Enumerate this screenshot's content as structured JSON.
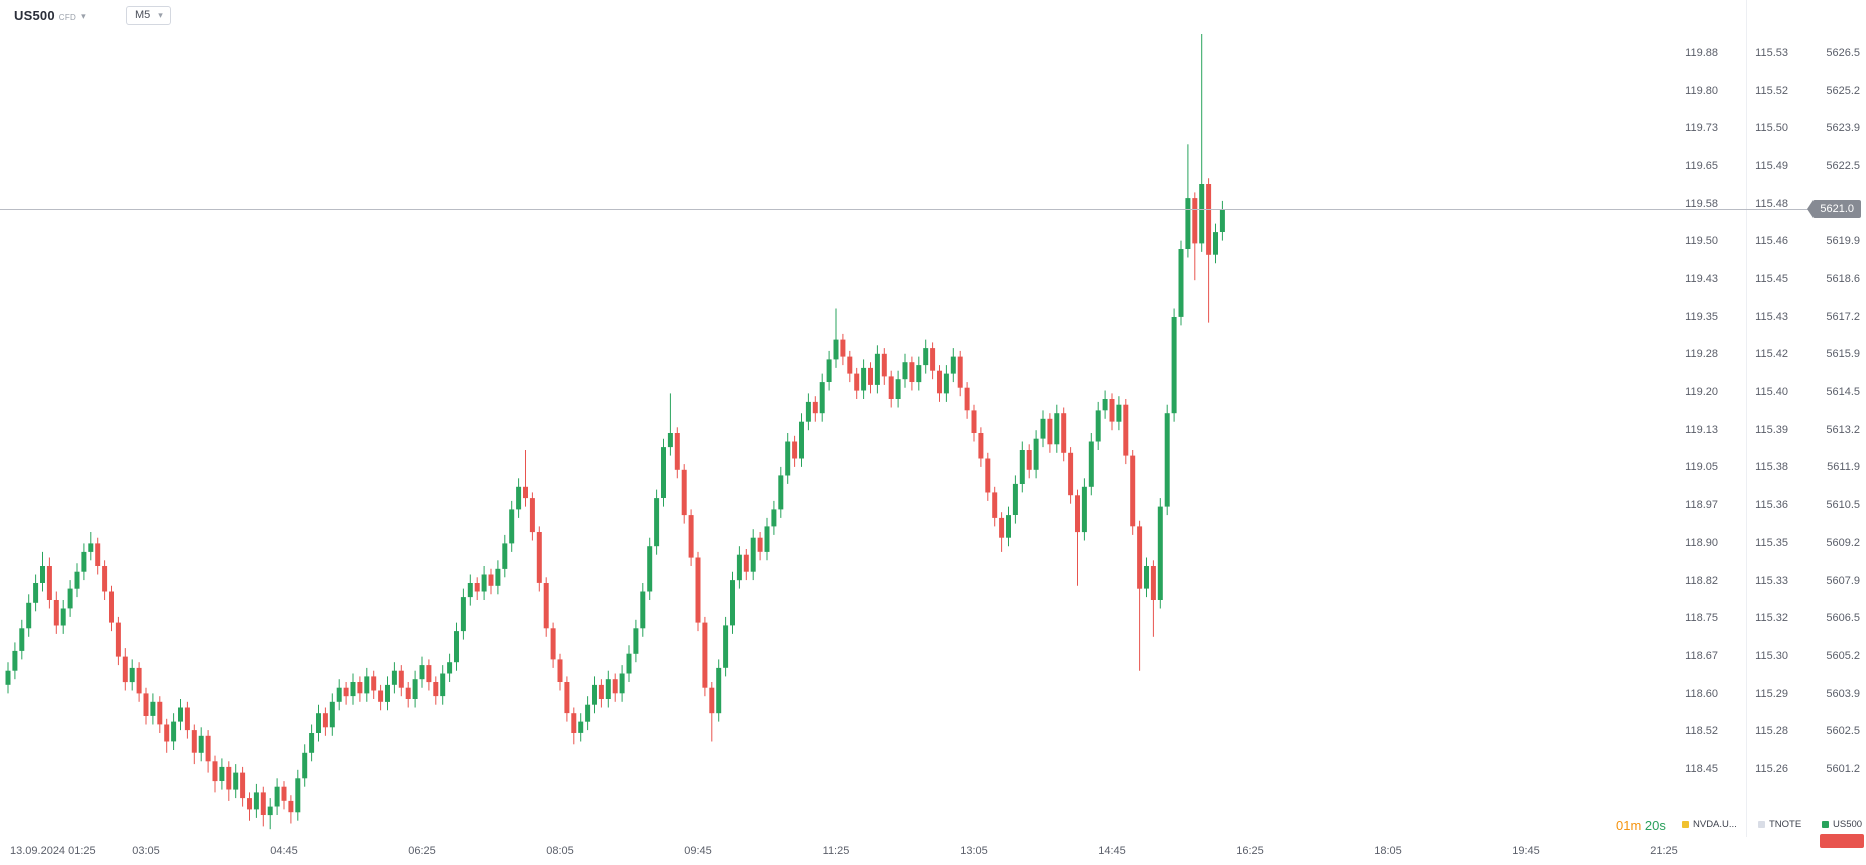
{
  "header": {
    "symbol": "US500",
    "instrument_type": "CFD",
    "timeframe": "M5"
  },
  "price_scales": {
    "columns": [
      {
        "name": "NVDA.US",
        "values": [
          "119.88",
          "119.80",
          "119.73",
          "119.65",
          "119.58",
          "119.50",
          "119.43",
          "119.35",
          "119.28",
          "119.20",
          "119.13",
          "119.05",
          "118.97",
          "118.90",
          "118.82",
          "118.75",
          "118.67",
          "118.60",
          "118.52",
          "118.45"
        ]
      },
      {
        "name": "TNOTE",
        "values": [
          "115.53",
          "115.52",
          "115.50",
          "115.49",
          "115.48",
          "115.46",
          "115.45",
          "115.43",
          "115.42",
          "115.40",
          "115.39",
          "115.38",
          "115.36",
          "115.35",
          "115.33",
          "115.32",
          "115.30",
          "115.29",
          "115.28",
          "115.26"
        ]
      },
      {
        "name": "US500",
        "values": [
          "5626.5",
          "5625.2",
          "5623.9",
          "5622.5",
          "",
          "5619.9",
          "5618.6",
          "5617.2",
          "5615.9",
          "5614.5",
          "5613.2",
          "5611.9",
          "5610.5",
          "5609.2",
          "5607.9",
          "5606.5",
          "5605.2",
          "5603.9",
          "5602.5",
          "5601.2"
        ]
      }
    ]
  },
  "current_price": {
    "value": "5621.0"
  },
  "time_axis": {
    "labels": [
      "13.09.2024 01:25",
      "03:05",
      "04:45",
      "06:25",
      "08:05",
      "09:45",
      "11:25",
      "13:05",
      "14:45",
      "16:25",
      "18:05",
      "19:45",
      "21:25"
    ]
  },
  "footer": {
    "countdown": {
      "minutes": "01m",
      "seconds": "20s"
    },
    "legend": [
      {
        "label": "NVDA.U...",
        "color": "#f0c12f"
      },
      {
        "label": "TNOTE",
        "color": "#d9dde6"
      },
      {
        "label": "US500",
        "color": "#28a35c"
      }
    ]
  },
  "chart_data": {
    "type": "candlestick",
    "symbol": "US500",
    "instrument_type": "CFD",
    "timeframe": "M5",
    "date": "13.09.2024",
    "start_time": "01:25",
    "interval_minutes": 5,
    "price_axis": {
      "visible_min": 5601.2,
      "visible_max": 5626.5,
      "tick_step": 1.3
    },
    "current_price": 5621.0,
    "colors": {
      "up": "#28a35c",
      "down": "#e8544e",
      "price_line": "#b9bcc4"
    },
    "ohlc": [
      [
        5604.2,
        5605.0,
        5603.9,
        5604.7
      ],
      [
        5604.7,
        5605.7,
        5604.4,
        5605.4
      ],
      [
        5605.4,
        5606.5,
        5605.1,
        5606.2
      ],
      [
        5606.2,
        5607.4,
        5605.9,
        5607.1
      ],
      [
        5607.1,
        5608.1,
        5606.8,
        5607.8
      ],
      [
        5607.8,
        5608.9,
        5607.5,
        5608.4
      ],
      [
        5608.4,
        5608.7,
        5606.9,
        5607.2
      ],
      [
        5607.2,
        5607.5,
        5606.0,
        5606.3
      ],
      [
        5606.3,
        5607.2,
        5606.0,
        5606.9
      ],
      [
        5606.9,
        5607.9,
        5606.6,
        5607.6
      ],
      [
        5607.6,
        5608.5,
        5607.3,
        5608.2
      ],
      [
        5608.2,
        5609.2,
        5607.9,
        5608.9
      ],
      [
        5608.9,
        5609.6,
        5608.6,
        5609.2
      ],
      [
        5609.2,
        5609.4,
        5608.1,
        5608.4
      ],
      [
        5608.4,
        5608.6,
        5607.2,
        5607.5
      ],
      [
        5607.5,
        5607.7,
        5606.1,
        5606.4
      ],
      [
        5606.4,
        5606.6,
        5604.9,
        5605.2
      ],
      [
        5605.2,
        5605.5,
        5604.0,
        5604.3
      ],
      [
        5604.3,
        5605.1,
        5604.0,
        5604.8
      ],
      [
        5604.8,
        5605.0,
        5603.6,
        5603.9
      ],
      [
        5603.9,
        5604.1,
        5602.8,
        5603.1
      ],
      [
        5603.1,
        5603.9,
        5602.8,
        5603.6
      ],
      [
        5603.6,
        5603.8,
        5602.5,
        5602.8
      ],
      [
        5602.8,
        5603.0,
        5601.8,
        5602.2
      ],
      [
        5602.2,
        5603.2,
        5601.9,
        5602.9
      ],
      [
        5602.9,
        5603.7,
        5602.6,
        5603.4
      ],
      [
        5603.4,
        5603.6,
        5602.3,
        5602.6
      ],
      [
        5602.6,
        5602.8,
        5601.4,
        5601.8
      ],
      [
        5601.8,
        5602.7,
        5601.5,
        5602.4
      ],
      [
        5602.4,
        5602.6,
        5601.1,
        5601.5
      ],
      [
        5601.5,
        5601.7,
        5600.4,
        5600.8
      ],
      [
        5600.8,
        5601.6,
        5600.5,
        5601.3
      ],
      [
        5601.3,
        5601.5,
        5600.1,
        5600.5
      ],
      [
        5600.5,
        5601.4,
        5600.2,
        5601.1
      ],
      [
        5601.1,
        5601.3,
        5599.9,
        5600.2
      ],
      [
        5600.2,
        5600.4,
        5599.4,
        5599.8
      ],
      [
        5599.8,
        5600.7,
        5599.5,
        5600.4
      ],
      [
        5600.4,
        5600.6,
        5599.2,
        5599.6
      ],
      [
        5599.6,
        5600.2,
        5599.1,
        5599.9
      ],
      [
        5599.9,
        5600.9,
        5599.6,
        5600.6
      ],
      [
        5600.6,
        5600.8,
        5599.8,
        5600.1
      ],
      [
        5600.1,
        5600.3,
        5599.3,
        5599.7
      ],
      [
        5599.7,
        5601.2,
        5599.4,
        5600.9
      ],
      [
        5600.9,
        5602.1,
        5600.6,
        5601.8
      ],
      [
        5601.8,
        5602.8,
        5601.5,
        5602.5
      ],
      [
        5602.5,
        5603.5,
        5602.2,
        5603.2
      ],
      [
        5603.2,
        5603.4,
        5602.4,
        5602.7
      ],
      [
        5602.7,
        5603.9,
        5602.4,
        5603.6
      ],
      [
        5603.6,
        5604.4,
        5603.3,
        5604.1
      ],
      [
        5604.1,
        5604.3,
        5603.5,
        5603.8
      ],
      [
        5603.8,
        5604.6,
        5603.5,
        5604.3
      ],
      [
        5604.3,
        5604.5,
        5603.6,
        5603.9
      ],
      [
        5603.9,
        5604.8,
        5603.6,
        5604.5
      ],
      [
        5604.5,
        5604.7,
        5603.7,
        5604.0
      ],
      [
        5604.0,
        5604.2,
        5603.3,
        5603.6
      ],
      [
        5603.6,
        5604.5,
        5603.3,
        5604.2
      ],
      [
        5604.2,
        5605.0,
        5603.9,
        5604.7
      ],
      [
        5604.7,
        5604.9,
        5603.8,
        5604.1
      ],
      [
        5604.1,
        5604.3,
        5603.4,
        5603.7
      ],
      [
        5603.7,
        5604.7,
        5603.4,
        5604.4
      ],
      [
        5604.4,
        5605.2,
        5604.1,
        5604.9
      ],
      [
        5604.9,
        5605.1,
        5604.0,
        5604.3
      ],
      [
        5604.3,
        5604.5,
        5603.5,
        5603.8
      ],
      [
        5603.8,
        5604.9,
        5603.5,
        5604.6
      ],
      [
        5604.6,
        5605.3,
        5604.3,
        5605.0
      ],
      [
        5605.0,
        5606.4,
        5604.7,
        5606.1
      ],
      [
        5606.1,
        5607.6,
        5605.8,
        5607.3
      ],
      [
        5607.3,
        5608.1,
        5607.0,
        5607.8
      ],
      [
        5607.8,
        5608.0,
        5607.2,
        5607.5
      ],
      [
        5607.5,
        5608.4,
        5607.2,
        5608.1
      ],
      [
        5608.1,
        5608.3,
        5607.4,
        5607.7
      ],
      [
        5607.7,
        5608.6,
        5607.4,
        5608.3
      ],
      [
        5608.3,
        5609.5,
        5608.0,
        5609.2
      ],
      [
        5609.2,
        5610.7,
        5608.9,
        5610.4
      ],
      [
        5610.4,
        5611.5,
        5610.1,
        5611.2
      ],
      [
        5611.2,
        5612.5,
        5610.5,
        5610.8
      ],
      [
        5610.8,
        5611.0,
        5609.3,
        5609.6
      ],
      [
        5609.6,
        5609.8,
        5607.5,
        5607.8
      ],
      [
        5607.8,
        5608.0,
        5605.9,
        5606.2
      ],
      [
        5606.2,
        5606.4,
        5604.8,
        5605.1
      ],
      [
        5605.1,
        5605.3,
        5604.0,
        5604.3
      ],
      [
        5604.3,
        5604.5,
        5602.9,
        5603.2
      ],
      [
        5603.2,
        5603.4,
        5602.1,
        5602.5
      ],
      [
        5602.5,
        5603.2,
        5602.2,
        5602.9
      ],
      [
        5602.9,
        5603.8,
        5602.6,
        5603.5
      ],
      [
        5603.5,
        5604.5,
        5603.2,
        5604.2
      ],
      [
        5604.2,
        5604.4,
        5603.4,
        5603.7
      ],
      [
        5603.7,
        5604.7,
        5603.4,
        5604.4
      ],
      [
        5604.4,
        5604.6,
        5603.6,
        5603.9
      ],
      [
        5603.9,
        5604.9,
        5603.6,
        5604.6
      ],
      [
        5604.6,
        5605.6,
        5604.3,
        5605.3
      ],
      [
        5605.3,
        5606.5,
        5605.0,
        5606.2
      ],
      [
        5606.2,
        5607.8,
        5605.9,
        5607.5
      ],
      [
        5607.5,
        5609.4,
        5607.2,
        5609.1
      ],
      [
        5609.1,
        5611.1,
        5608.8,
        5610.8
      ],
      [
        5610.8,
        5612.9,
        5610.5,
        5612.6
      ],
      [
        5612.6,
        5614.5,
        5612.3,
        5613.1
      ],
      [
        5613.1,
        5613.3,
        5611.5,
        5611.8
      ],
      [
        5611.8,
        5612.0,
        5609.9,
        5610.2
      ],
      [
        5610.2,
        5610.4,
        5608.4,
        5608.7
      ],
      [
        5608.7,
        5608.9,
        5606.1,
        5606.4
      ],
      [
        5606.4,
        5606.6,
        5603.8,
        5604.1
      ],
      [
        5604.1,
        5604.3,
        5602.2,
        5603.2
      ],
      [
        5603.2,
        5605.1,
        5602.9,
        5604.8
      ],
      [
        5604.8,
        5606.6,
        5604.5,
        5606.3
      ],
      [
        5606.3,
        5608.2,
        5606.0,
        5607.9
      ],
      [
        5607.9,
        5609.1,
        5607.6,
        5608.8
      ],
      [
        5608.8,
        5609.0,
        5607.9,
        5608.2
      ],
      [
        5608.2,
        5609.7,
        5607.9,
        5609.4
      ],
      [
        5609.4,
        5609.6,
        5608.6,
        5608.9
      ],
      [
        5608.9,
        5610.1,
        5608.6,
        5609.8
      ],
      [
        5609.8,
        5610.7,
        5609.5,
        5610.4
      ],
      [
        5610.4,
        5611.9,
        5610.1,
        5611.6
      ],
      [
        5611.6,
        5613.1,
        5611.3,
        5612.8
      ],
      [
        5612.8,
        5613.0,
        5611.9,
        5612.2
      ],
      [
        5612.2,
        5613.8,
        5611.9,
        5613.5
      ],
      [
        5613.5,
        5614.5,
        5613.2,
        5614.2
      ],
      [
        5614.2,
        5614.4,
        5613.5,
        5613.8
      ],
      [
        5613.8,
        5615.2,
        5613.5,
        5614.9
      ],
      [
        5614.9,
        5616.0,
        5614.6,
        5615.7
      ],
      [
        5615.7,
        5617.5,
        5615.4,
        5616.4
      ],
      [
        5616.4,
        5616.6,
        5615.5,
        5615.8
      ],
      [
        5615.8,
        5616.0,
        5614.9,
        5615.2
      ],
      [
        5615.2,
        5615.4,
        5614.3,
        5614.6
      ],
      [
        5614.6,
        5615.7,
        5614.3,
        5615.4
      ],
      [
        5615.4,
        5615.6,
        5614.5,
        5614.8
      ],
      [
        5614.8,
        5616.2,
        5614.5,
        5615.9
      ],
      [
        5615.9,
        5616.1,
        5614.8,
        5615.1
      ],
      [
        5615.1,
        5615.3,
        5614.0,
        5614.3
      ],
      [
        5614.3,
        5615.3,
        5614.0,
        5615.0
      ],
      [
        5615.0,
        5615.9,
        5614.7,
        5615.6
      ],
      [
        5615.6,
        5615.8,
        5614.6,
        5614.9
      ],
      [
        5614.9,
        5615.8,
        5614.6,
        5615.5
      ],
      [
        5615.5,
        5616.4,
        5615.2,
        5616.1
      ],
      [
        5616.1,
        5616.3,
        5615.0,
        5615.3
      ],
      [
        5615.3,
        5615.5,
        5614.2,
        5614.5
      ],
      [
        5614.5,
        5615.5,
        5614.2,
        5615.2
      ],
      [
        5615.2,
        5616.1,
        5614.9,
        5615.8
      ],
      [
        5615.8,
        5616.0,
        5614.4,
        5614.7
      ],
      [
        5614.7,
        5614.9,
        5613.6,
        5613.9
      ],
      [
        5613.9,
        5614.1,
        5612.8,
        5613.1
      ],
      [
        5613.1,
        5613.3,
        5611.9,
        5612.2
      ],
      [
        5612.2,
        5612.4,
        5610.7,
        5611.0
      ],
      [
        5611.0,
        5611.2,
        5609.8,
        5610.1
      ],
      [
        5610.1,
        5610.3,
        5608.9,
        5609.4
      ],
      [
        5609.4,
        5610.5,
        5609.1,
        5610.2
      ],
      [
        5610.2,
        5611.6,
        5609.9,
        5611.3
      ],
      [
        5611.3,
        5612.8,
        5611.0,
        5612.5
      ],
      [
        5612.5,
        5612.7,
        5611.5,
        5611.8
      ],
      [
        5611.8,
        5613.2,
        5611.5,
        5612.9
      ],
      [
        5612.9,
        5613.9,
        5612.6,
        5613.6
      ],
      [
        5613.6,
        5613.8,
        5612.4,
        5612.7
      ],
      [
        5612.7,
        5614.1,
        5612.4,
        5613.8
      ],
      [
        5613.8,
        5614.0,
        5612.1,
        5612.4
      ],
      [
        5612.4,
        5612.6,
        5610.6,
        5610.9
      ],
      [
        5610.9,
        5611.1,
        5607.7,
        5609.6
      ],
      [
        5609.6,
        5611.5,
        5609.3,
        5611.2
      ],
      [
        5611.2,
        5613.1,
        5610.9,
        5612.8
      ],
      [
        5612.8,
        5614.2,
        5612.5,
        5613.9
      ],
      [
        5613.9,
        5614.6,
        5613.6,
        5614.3
      ],
      [
        5614.3,
        5614.5,
        5613.2,
        5613.5
      ],
      [
        5613.5,
        5614.4,
        5613.2,
        5614.1
      ],
      [
        5614.1,
        5614.3,
        5612.0,
        5612.3
      ],
      [
        5612.3,
        5612.5,
        5609.5,
        5609.8
      ],
      [
        5609.8,
        5610.0,
        5604.7,
        5607.6
      ],
      [
        5607.6,
        5608.7,
        5607.3,
        5608.4
      ],
      [
        5608.4,
        5608.6,
        5605.9,
        5607.2
      ],
      [
        5607.2,
        5610.8,
        5606.9,
        5610.5
      ],
      [
        5610.5,
        5614.1,
        5610.2,
        5613.8
      ],
      [
        5613.8,
        5617.5,
        5613.5,
        5617.2
      ],
      [
        5617.2,
        5619.9,
        5616.9,
        5619.6
      ],
      [
        5619.6,
        5623.3,
        5619.3,
        5621.4
      ],
      [
        5621.4,
        5621.6,
        5618.5,
        5619.8
      ],
      [
        5619.8,
        5627.2,
        5619.5,
        5621.9
      ],
      [
        5621.9,
        5622.1,
        5617.0,
        5619.4
      ],
      [
        5619.4,
        5620.5,
        5619.1,
        5620.2
      ],
      [
        5620.2,
        5621.3,
        5619.9,
        5621.0
      ]
    ]
  }
}
